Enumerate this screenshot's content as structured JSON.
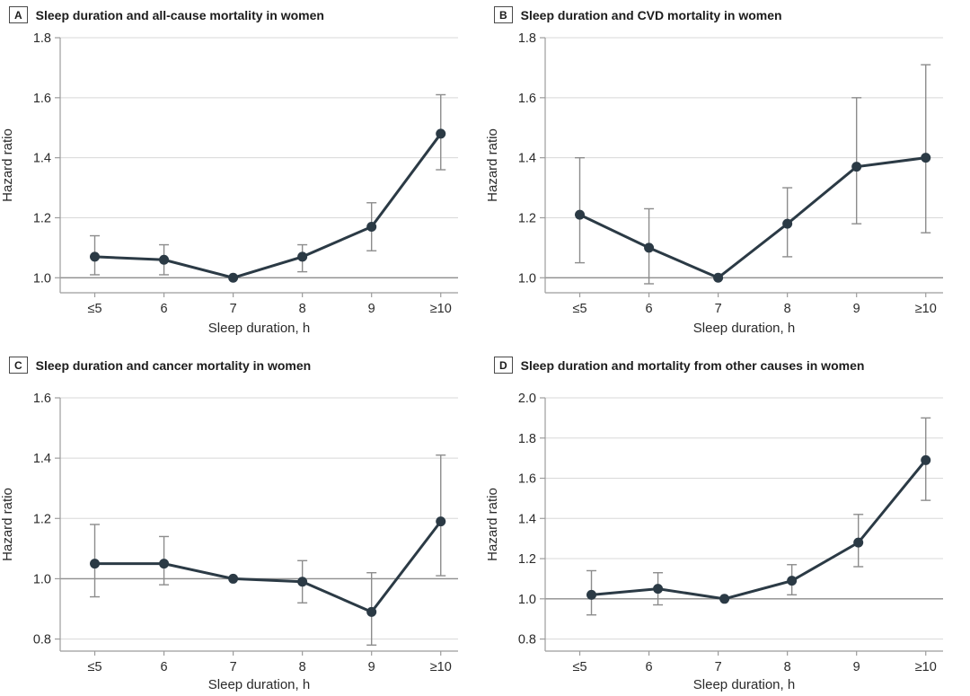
{
  "figure": {
    "description": "Four-panel figure of hazard ratios by sleep duration in women",
    "background": "#ffffff"
  },
  "colors": {
    "line": "#2b3a45",
    "error_bar": "#8c8c8c",
    "gridline": "#d8d8d8",
    "axis": "#9c9c9c",
    "reference_line": "#8f8f8f",
    "text": "#2a2a2a"
  },
  "chart_data": [
    {
      "type": "line",
      "panel_label": "A",
      "title": "Sleep duration and all-cause mortality in women",
      "xlabel": "Sleep duration, h",
      "ylabel": "Hazard ratio",
      "categories": [
        "≤5",
        "6",
        "7",
        "8",
        "9",
        "≥10"
      ],
      "yticks": [
        1.0,
        1.2,
        1.4,
        1.6,
        1.8
      ],
      "ylim": [
        0.95,
        1.8
      ],
      "reference_line": 1.0,
      "grid": true,
      "legend": "none",
      "points": [
        {
          "x": "≤5",
          "hr": 1.07,
          "ci": [
            1.01,
            1.14
          ]
        },
        {
          "x": "6",
          "hr": 1.06,
          "ci": [
            1.01,
            1.11
          ]
        },
        {
          "x": "7",
          "hr": 1.0,
          "ci": null
        },
        {
          "x": "8",
          "hr": 1.07,
          "ci": [
            1.02,
            1.11
          ]
        },
        {
          "x": "9",
          "hr": 1.17,
          "ci": [
            1.09,
            1.25
          ]
        },
        {
          "x": "≥10",
          "hr": 1.48,
          "ci": [
            1.36,
            1.61
          ]
        }
      ]
    },
    {
      "type": "line",
      "panel_label": "B",
      "title": "Sleep duration and CVD mortality in women",
      "xlabel": "Sleep duration, h",
      "ylabel": "Hazard ratio",
      "categories": [
        "≤5",
        "6",
        "7",
        "8",
        "9",
        "≥10"
      ],
      "yticks": [
        1.0,
        1.2,
        1.4,
        1.6,
        1.8
      ],
      "ylim": [
        0.95,
        1.8
      ],
      "reference_line": 1.0,
      "grid": true,
      "legend": "none",
      "points": [
        {
          "x": "≤5",
          "hr": 1.21,
          "ci": [
            1.05,
            1.4
          ]
        },
        {
          "x": "6",
          "hr": 1.1,
          "ci": [
            0.98,
            1.23
          ]
        },
        {
          "x": "7",
          "hr": 1.0,
          "ci": null
        },
        {
          "x": "8",
          "hr": 1.18,
          "ci": [
            1.07,
            1.3
          ]
        },
        {
          "x": "9",
          "hr": 1.37,
          "ci": [
            1.18,
            1.6
          ]
        },
        {
          "x": "≥10",
          "hr": 1.4,
          "ci": [
            1.15,
            1.71
          ]
        }
      ]
    },
    {
      "type": "line",
      "panel_label": "C",
      "title": "Sleep duration and cancer mortality in women",
      "xlabel": "Sleep duration, h",
      "ylabel": "Hazard ratio",
      "categories": [
        "≤5",
        "6",
        "7",
        "8",
        "9",
        "≥10"
      ],
      "yticks": [
        0.8,
        1.0,
        1.2,
        1.4,
        1.6
      ],
      "ylim": [
        0.76,
        1.6
      ],
      "reference_line": 1.0,
      "grid": true,
      "legend": "none",
      "points": [
        {
          "x": "≤5",
          "hr": 1.05,
          "ci": [
            0.94,
            1.18
          ]
        },
        {
          "x": "6",
          "hr": 1.05,
          "ci": [
            0.98,
            1.14
          ]
        },
        {
          "x": "7",
          "hr": 1.0,
          "ci": null
        },
        {
          "x": "8",
          "hr": 0.99,
          "ci": [
            0.92,
            1.06
          ]
        },
        {
          "x": "9",
          "hr": 0.89,
          "ci": [
            0.78,
            1.02
          ]
        },
        {
          "x": "≥10",
          "hr": 1.19,
          "ci": [
            1.01,
            1.41
          ]
        }
      ]
    },
    {
      "type": "line",
      "panel_label": "D",
      "title": "Sleep duration and mortality from other causes in women",
      "xlabel": "Sleep duration, h",
      "ylabel": "Hazard ratio",
      "categories": [
        "≤5",
        "6",
        "7",
        "8",
        "9",
        "≥10"
      ],
      "yticks": [
        0.8,
        1.0,
        1.2,
        1.4,
        1.6,
        1.8,
        2.0
      ],
      "ylim": [
        0.74,
        2.0
      ],
      "reference_line": 1.0,
      "grid": true,
      "legend": "none",
      "points": [
        {
          "x": "≤5",
          "hr": 1.02,
          "ci": [
            0.92,
            1.14
          ]
        },
        {
          "x": "6",
          "hr": 1.05,
          "ci": [
            0.97,
            1.13
          ]
        },
        {
          "x": "7",
          "hr": 1.0,
          "ci": null
        },
        {
          "x": "8",
          "hr": 1.09,
          "ci": [
            1.02,
            1.17
          ]
        },
        {
          "x": "9",
          "hr": 1.28,
          "ci": [
            1.16,
            1.42
          ]
        },
        {
          "x": "≥10",
          "hr": 1.69,
          "ci": [
            1.49,
            1.9
          ]
        }
      ]
    }
  ]
}
